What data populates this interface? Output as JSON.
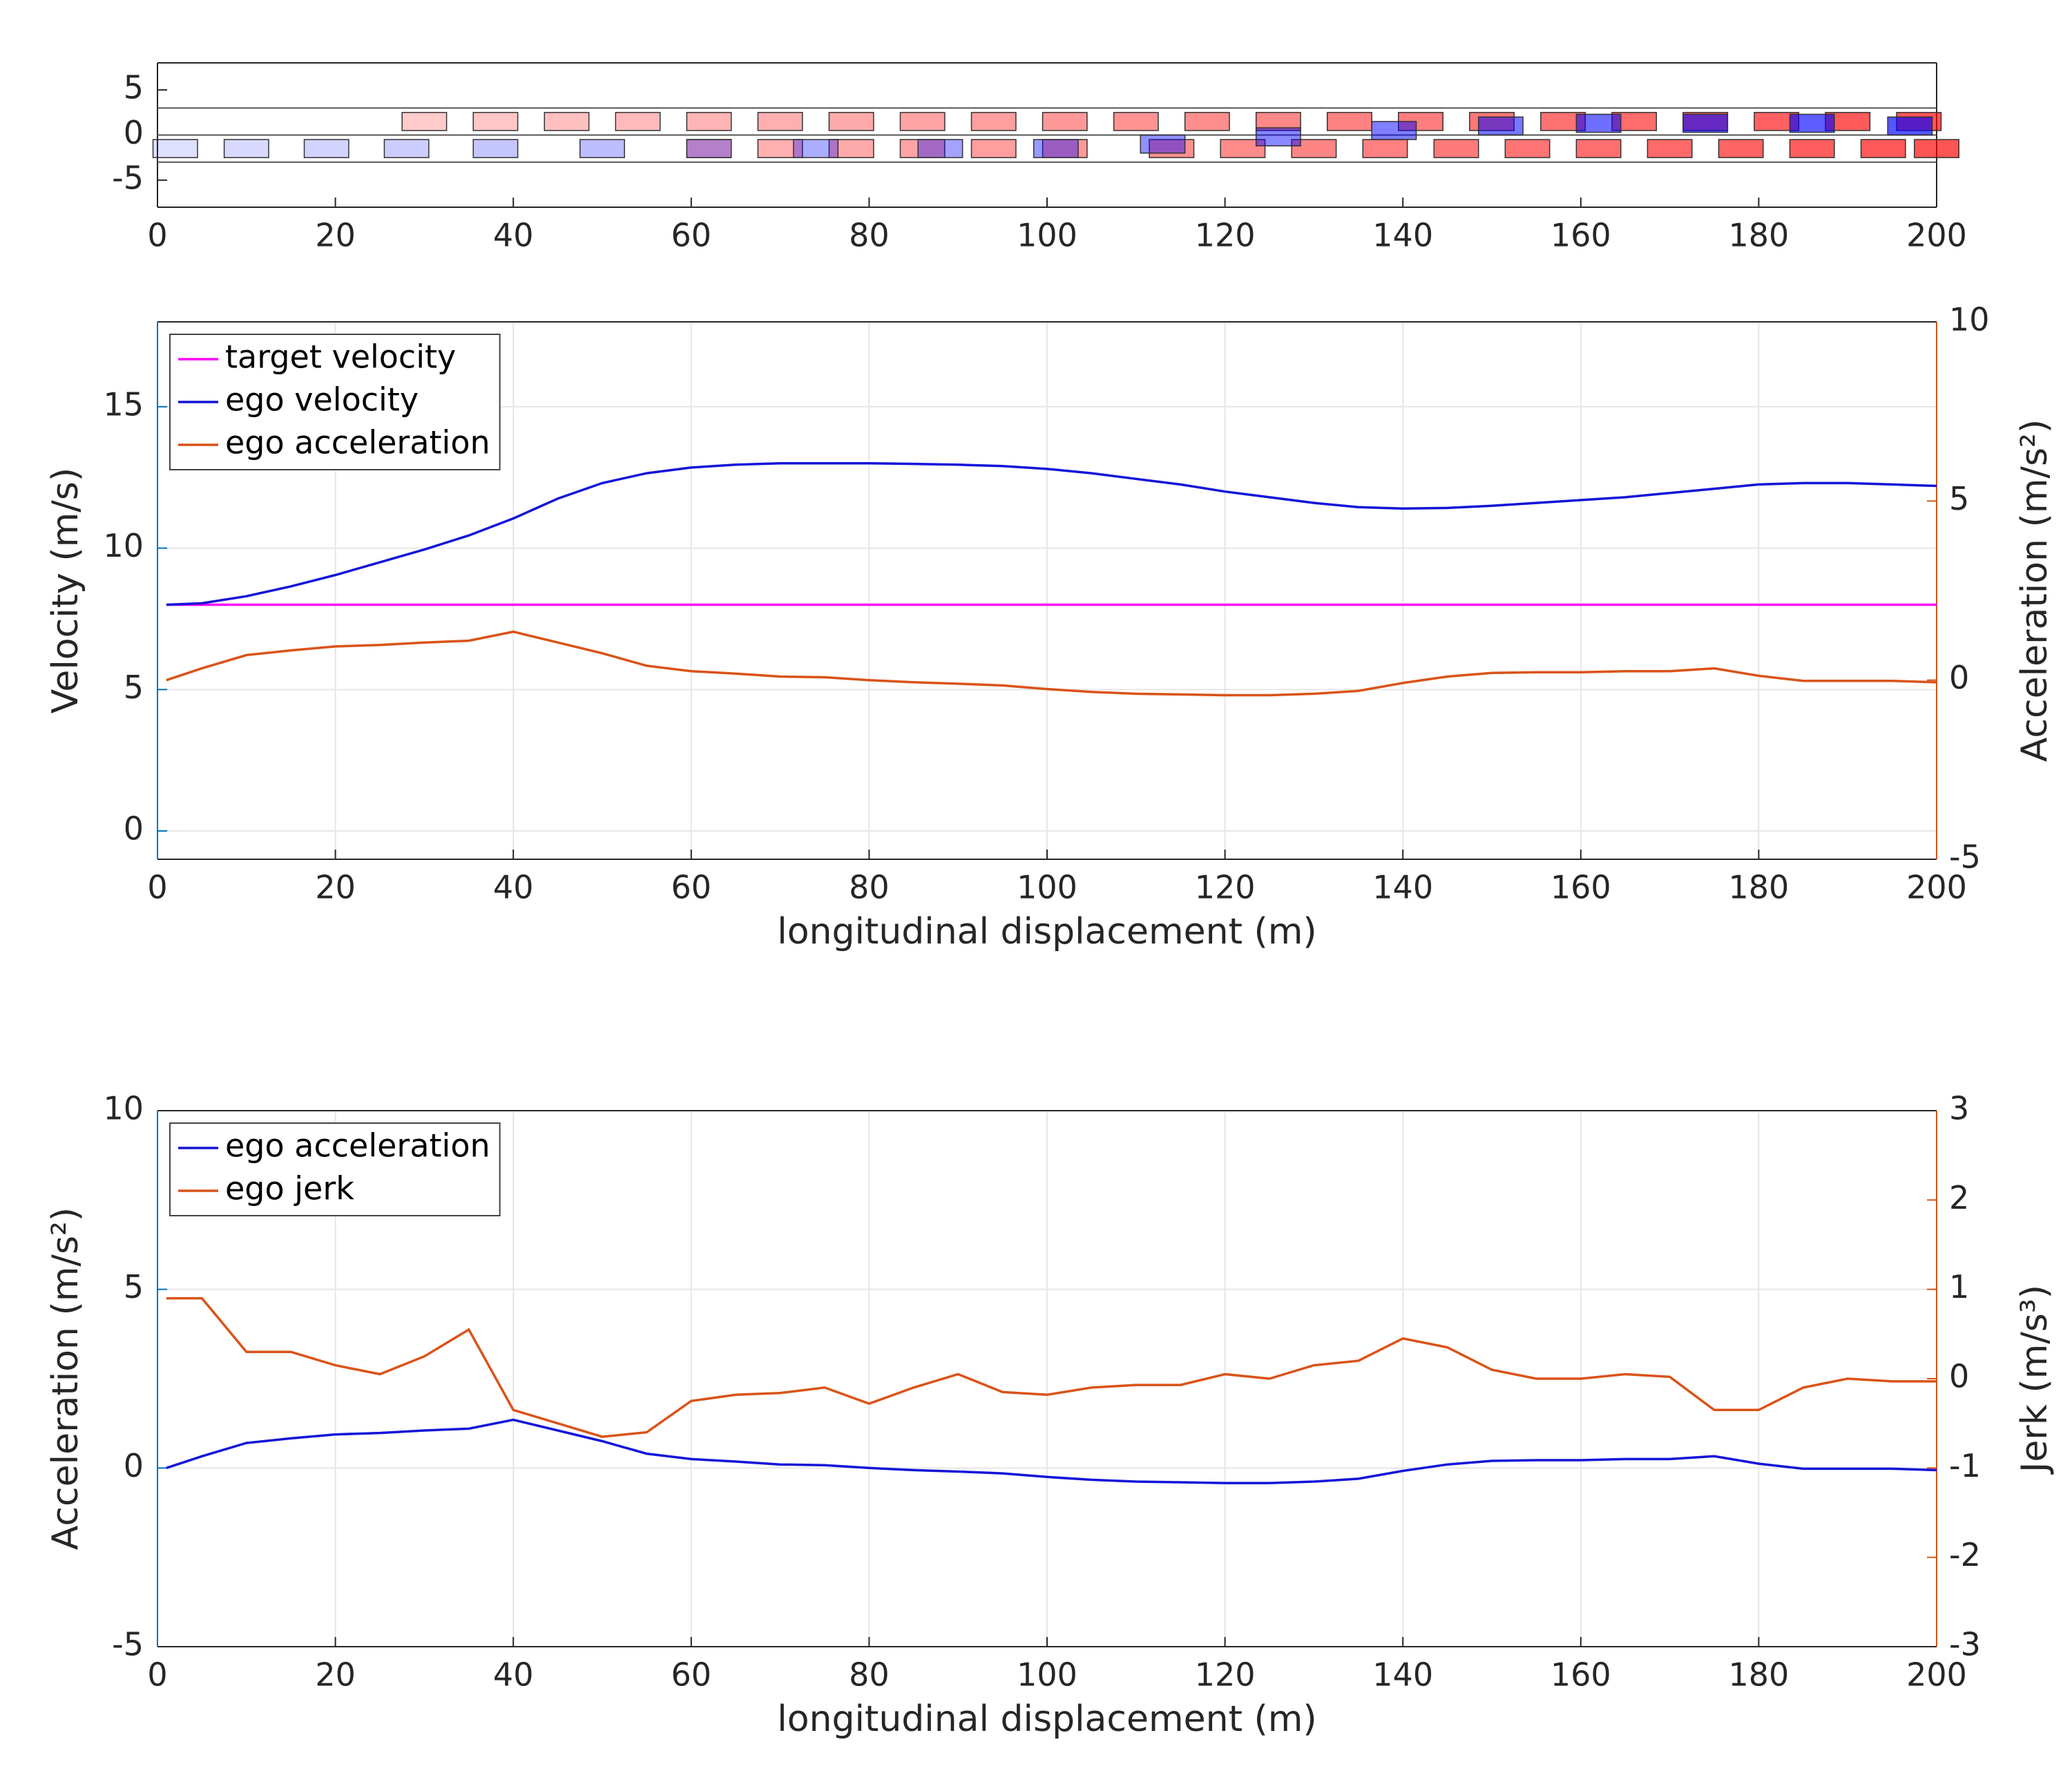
{
  "chart_data": [
    {
      "type": "scene",
      "xlim": [
        0,
        200
      ],
      "xticks": [
        0,
        20,
        40,
        60,
        80,
        100,
        120,
        140,
        160,
        180,
        200
      ],
      "ylim": [
        -8,
        8
      ],
      "yticks": [
        -5,
        0,
        5
      ],
      "lanes": [
        3,
        0,
        -3
      ],
      "series": [
        {
          "color": "#ff0000",
          "x": [
            30,
            38,
            46,
            54,
            62,
            70,
            78,
            86,
            94,
            102,
            110,
            118,
            126,
            134,
            142,
            150,
            158,
            166,
            174,
            182,
            190,
            198
          ],
          "values": [
            1.5,
            1.5,
            1.5,
            1.5,
            1.5,
            1.5,
            1.5,
            1.5,
            1.5,
            1.5,
            1.5,
            1.5,
            1.5,
            1.5,
            1.5,
            1.5,
            1.5,
            1.5,
            1.5,
            1.5,
            1.5,
            1.5
          ]
        },
        {
          "color": "#ff0000",
          "x": [
            62,
            70,
            78,
            86,
            94,
            102,
            114,
            122,
            130,
            138,
            146,
            154,
            162,
            170,
            178,
            186,
            194,
            200
          ],
          "values": [
            -1.5,
            -1.5,
            -1.5,
            -1.5,
            -1.5,
            -1.5,
            -1.5,
            -1.5,
            -1.5,
            -1.5,
            -1.5,
            -1.5,
            -1.5,
            -1.5,
            -1.5,
            -1.5,
            -1.5,
            -1.5
          ]
        },
        {
          "color": "#0000ff",
          "x": [
            2,
            10,
            19,
            28,
            38,
            50,
            62,
            74,
            88,
            101,
            113,
            126,
            139,
            151,
            162,
            174,
            186,
            197
          ],
          "values": [
            -1.5,
            -1.5,
            -1.5,
            -1.5,
            -1.5,
            -1.5,
            -1.5,
            -1.5,
            -1.5,
            -1.5,
            -1.0,
            -0.2,
            0.5,
            1.0,
            1.3,
            1.3,
            1.3,
            1.0
          ]
        }
      ]
    },
    {
      "type": "line",
      "grid": true,
      "legend": "upper left",
      "xlabel": "longitudinal displacement (m)",
      "ylabel": "Velocity (m/s)",
      "y2label": "Acceleration (m/s²)",
      "ycolor": "#0072bd",
      "y2color": "#d95319",
      "xlim": [
        0,
        200
      ],
      "xticks": [
        0,
        20,
        40,
        60,
        80,
        100,
        120,
        140,
        160,
        180,
        200
      ],
      "ylim": [
        -1,
        18
      ],
      "yticks": [
        0,
        5,
        10,
        15
      ],
      "y2lim": [
        -5,
        10
      ],
      "y2ticks": [
        -5,
        0,
        5,
        10
      ],
      "x": [
        1,
        5,
        10,
        15,
        20,
        25,
        30,
        35,
        40,
        45,
        50,
        55,
        60,
        65,
        70,
        75,
        80,
        85,
        90,
        95,
        100,
        105,
        110,
        115,
        120,
        125,
        130,
        135,
        140,
        145,
        150,
        155,
        160,
        165,
        170,
        175,
        180,
        185,
        190,
        195,
        200
      ],
      "series": [
        {
          "name": "target velocity",
          "color": "#ff00ff",
          "values": [
            8,
            8,
            8,
            8,
            8,
            8,
            8,
            8,
            8,
            8,
            8,
            8,
            8,
            8,
            8,
            8,
            8,
            8,
            8,
            8,
            8,
            8,
            8,
            8,
            8,
            8,
            8,
            8,
            8,
            8,
            8,
            8,
            8,
            8,
            8,
            8,
            8,
            8,
            8,
            8,
            8
          ]
        },
        {
          "name": "ego velocity",
          "color": "#1414d8",
          "values": [
            8.0,
            8.05,
            8.3,
            8.65,
            9.05,
            9.5,
            9.95,
            10.45,
            11.05,
            11.75,
            12.3,
            12.65,
            12.85,
            12.95,
            13.0,
            13.0,
            13.0,
            12.98,
            12.95,
            12.9,
            12.8,
            12.65,
            12.45,
            12.25,
            12.0,
            11.8,
            11.6,
            11.45,
            11.4,
            11.42,
            11.5,
            11.6,
            11.7,
            11.8,
            11.95,
            12.1,
            12.25,
            12.3,
            12.3,
            12.25,
            12.2
          ]
        },
        {
          "name": "ego acceleration",
          "color": "#d95319",
          "axis": "y2",
          "values": [
            0.0,
            0.33,
            0.7,
            0.83,
            0.94,
            0.98,
            1.05,
            1.1,
            1.35,
            1.05,
            0.75,
            0.4,
            0.25,
            0.18,
            0.1,
            0.08,
            0.0,
            -0.06,
            -0.1,
            -0.15,
            -0.25,
            -0.33,
            -0.38,
            -0.4,
            -0.42,
            -0.42,
            -0.38,
            -0.3,
            -0.08,
            0.1,
            0.2,
            0.22,
            0.22,
            0.25,
            0.25,
            0.33,
            0.12,
            -0.02,
            -0.02,
            -0.02,
            -0.06
          ]
        }
      ]
    },
    {
      "type": "line",
      "grid": true,
      "legend": "upper left",
      "xlabel": "longitudinal displacement (m)",
      "ylabel": "Acceleration (m/s²)",
      "y2label": "Jerk (m/s³)",
      "ycolor": "#0072bd",
      "y2color": "#d95319",
      "xlim": [
        0,
        200
      ],
      "xticks": [
        0,
        20,
        40,
        60,
        80,
        100,
        120,
        140,
        160,
        180,
        200
      ],
      "ylim": [
        -5,
        10
      ],
      "yticks": [
        -5,
        0,
        5,
        10
      ],
      "y2lim": [
        -3,
        3
      ],
      "y2ticks": [
        -3,
        -2,
        -1,
        0,
        1,
        2,
        3
      ],
      "x": [
        1,
        5,
        10,
        15,
        20,
        25,
        30,
        35,
        40,
        45,
        50,
        55,
        60,
        65,
        70,
        75,
        80,
        85,
        90,
        95,
        100,
        105,
        110,
        115,
        120,
        125,
        130,
        135,
        140,
        145,
        150,
        155,
        160,
        165,
        170,
        175,
        180,
        185,
        190,
        195,
        200
      ],
      "series": [
        {
          "name": "ego acceleration",
          "color": "#1414d8",
          "values": [
            0.0,
            0.33,
            0.7,
            0.83,
            0.94,
            0.98,
            1.05,
            1.1,
            1.35,
            1.05,
            0.75,
            0.4,
            0.25,
            0.18,
            0.1,
            0.08,
            0.0,
            -0.06,
            -0.1,
            -0.15,
            -0.25,
            -0.33,
            -0.38,
            -0.4,
            -0.42,
            -0.42,
            -0.38,
            -0.3,
            -0.08,
            0.1,
            0.2,
            0.22,
            0.22,
            0.25,
            0.25,
            0.33,
            0.12,
            -0.02,
            -0.02,
            -0.02,
            -0.06
          ]
        },
        {
          "name": "ego jerk",
          "color": "#d95319",
          "axis": "y2",
          "values": [
            0.9,
            0.9,
            0.3,
            0.3,
            0.15,
            0.05,
            0.25,
            0.55,
            -0.35,
            -0.5,
            -0.65,
            -0.6,
            -0.25,
            -0.18,
            -0.16,
            -0.1,
            -0.28,
            -0.1,
            0.05,
            -0.15,
            -0.18,
            -0.1,
            -0.07,
            -0.07,
            0.05,
            0.0,
            0.15,
            0.2,
            0.45,
            0.35,
            0.1,
            0.0,
            0.0,
            0.05,
            0.02,
            -0.35,
            -0.35,
            -0.1,
            0.0,
            -0.03,
            -0.03
          ]
        }
      ]
    }
  ]
}
